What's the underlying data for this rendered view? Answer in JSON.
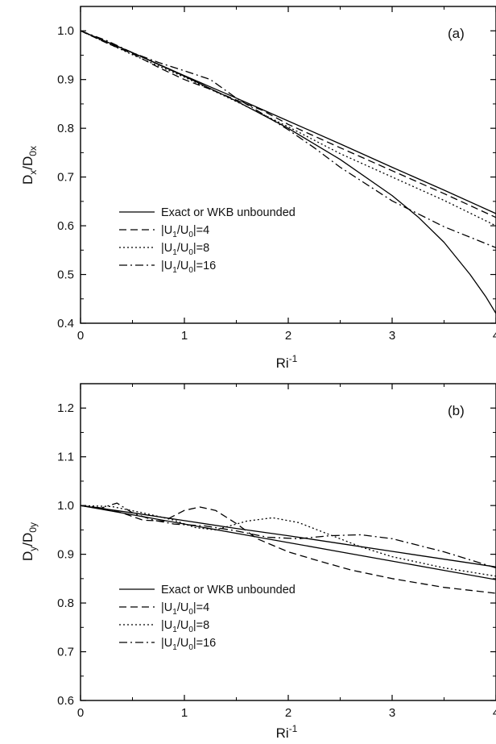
{
  "chart_data": [
    {
      "type": "line",
      "panel_label": "(a)",
      "xlabel": "Ri",
      "xlabel_superscript": "-1",
      "ylabel": "D",
      "ylabel_sub1": "x",
      "ylabel_mid": "/D",
      "ylabel_sub2": "0x",
      "xlim": [
        0,
        4
      ],
      "ylim": [
        0.4,
        1.05
      ],
      "xticks": [
        0,
        1,
        2,
        3,
        4
      ],
      "yticks": [
        0.4,
        0.5,
        0.6,
        0.7,
        0.8,
        0.9,
        1.0
      ],
      "ytick_labels": [
        "0.4",
        "0.5",
        "0.6",
        "0.7",
        "0.8",
        "0.9",
        "1.0"
      ],
      "grid": false,
      "legend_position": "lower-left",
      "legend": [
        {
          "dash": "solid",
          "text": "Exact or WKB unbounded"
        },
        {
          "dash": "dashed",
          "text_parts": [
            "|U",
            "1",
            "/U",
            "0",
            "|=4"
          ]
        },
        {
          "dash": "dotted",
          "text_parts": [
            "|U",
            "1",
            "/U",
            "0",
            "|=8"
          ]
        },
        {
          "dash": "dashdot",
          "text_parts": [
            "|U",
            "1",
            "/U",
            "0",
            "|=16"
          ]
        }
      ],
      "series": [
        {
          "dash": "solid",
          "x": [
            0,
            0.5,
            1,
            1.5,
            2,
            2.5,
            3,
            3.5,
            4
          ],
          "y": [
            1.0,
            0.955,
            0.908,
            0.862,
            0.815,
            0.768,
            0.72,
            0.673,
            0.625
          ]
        },
        {
          "dash": "solid",
          "x": [
            0,
            0.5,
            1,
            1.5,
            2,
            2.5,
            3,
            3.25,
            3.5,
            3.75,
            3.9,
            4
          ],
          "y": [
            1.0,
            0.955,
            0.907,
            0.856,
            0.8,
            0.736,
            0.662,
            0.618,
            0.566,
            0.5,
            0.455,
            0.42
          ]
        },
        {
          "dash": "dashed",
          "x": [
            0,
            0.25,
            0.5,
            0.75,
            1,
            1.25,
            1.5,
            1.75,
            2,
            2.5,
            3,
            3.5,
            4
          ],
          "y": [
            1.0,
            0.975,
            0.953,
            0.925,
            0.9,
            0.88,
            0.858,
            0.837,
            0.808,
            0.76,
            0.713,
            0.666,
            0.617
          ]
        },
        {
          "dash": "dotted",
          "x": [
            0,
            0.5,
            1,
            1.5,
            2,
            2.5,
            3,
            3.5,
            4
          ],
          "y": [
            1.0,
            0.951,
            0.905,
            0.855,
            0.803,
            0.748,
            0.7,
            0.652,
            0.6
          ]
        },
        {
          "dash": "dashdot",
          "x": [
            0,
            0.25,
            0.5,
            0.75,
            1,
            1.25,
            1.5,
            1.75,
            2,
            2.25,
            2.5,
            3,
            3.5,
            4
          ],
          "y": [
            1.0,
            0.98,
            0.955,
            0.935,
            0.918,
            0.9,
            0.862,
            0.83,
            0.797,
            0.76,
            0.72,
            0.651,
            0.598,
            0.555
          ]
        }
      ]
    },
    {
      "type": "line",
      "panel_label": "(b)",
      "xlabel": "Ri",
      "xlabel_superscript": "-1",
      "ylabel": "D",
      "ylabel_sub1": "y",
      "ylabel_mid": "/D",
      "ylabel_sub2": "0y",
      "xlim": [
        0,
        4
      ],
      "ylim": [
        0.6,
        1.25
      ],
      "xticks": [
        0,
        1,
        2,
        3,
        4
      ],
      "yticks": [
        0.6,
        0.7,
        0.8,
        0.9,
        1.0,
        1.1,
        1.2
      ],
      "ytick_labels": [
        "0.6",
        "0.7",
        "0.8",
        "0.9",
        "1.0",
        "1.1",
        "1.2"
      ],
      "grid": false,
      "legend_position": "lower-left",
      "legend": [
        {
          "dash": "solid",
          "text": "Exact or WKB unbounded"
        },
        {
          "dash": "dashed",
          "text_parts": [
            "|U",
            "1",
            "/U",
            "0",
            "|=4"
          ]
        },
        {
          "dash": "dotted",
          "text_parts": [
            "|U",
            "1",
            "/U",
            "0",
            "|=8"
          ]
        },
        {
          "dash": "dashdot",
          "text_parts": [
            "|U",
            "1",
            "/U",
            "0",
            "|=16"
          ]
        }
      ],
      "series": [
        {
          "dash": "solid",
          "x": [
            0,
            0.5,
            1,
            1.5,
            2,
            2.5,
            3,
            3.5,
            4
          ],
          "y": [
            1.0,
            0.985,
            0.969,
            0.953,
            0.938,
            0.922,
            0.906,
            0.89,
            0.874
          ]
        },
        {
          "dash": "solid",
          "x": [
            0,
            0.5,
            1,
            1.5,
            2,
            2.5,
            3,
            3.5,
            4
          ],
          "y": [
            1.0,
            0.981,
            0.962,
            0.943,
            0.924,
            0.905,
            0.886,
            0.867,
            0.848
          ]
        },
        {
          "dash": "dashed",
          "x": [
            0,
            0.2,
            0.4,
            0.6,
            0.8,
            1.0,
            1.15,
            1.3,
            1.5,
            1.7,
            2.0,
            2.3,
            2.6,
            3.0,
            3.5,
            4
          ],
          "y": [
            1.0,
            0.995,
            0.985,
            0.97,
            0.968,
            0.99,
            0.997,
            0.99,
            0.963,
            0.932,
            0.905,
            0.886,
            0.868,
            0.85,
            0.832,
            0.82
          ]
        },
        {
          "dash": "dotted",
          "x": [
            0,
            0.3,
            0.6,
            0.9,
            1.1,
            1.3,
            1.6,
            1.85,
            2.1,
            2.4,
            2.7,
            3.0,
            3.5,
            4
          ],
          "y": [
            1.0,
            0.998,
            0.985,
            0.97,
            0.955,
            0.95,
            0.968,
            0.975,
            0.965,
            0.94,
            0.915,
            0.895,
            0.872,
            0.855
          ]
        },
        {
          "dash": "dashdot",
          "x": [
            0,
            0.2,
            0.35,
            0.5,
            0.7,
            0.9,
            1.2,
            1.5,
            1.8,
            2.1,
            2.4,
            2.7,
            3.0,
            3.5,
            4
          ],
          "y": [
            1.0,
            0.995,
            1.005,
            0.985,
            0.97,
            0.962,
            0.958,
            0.948,
            0.935,
            0.932,
            0.938,
            0.94,
            0.932,
            0.905,
            0.872
          ]
        }
      ]
    }
  ]
}
